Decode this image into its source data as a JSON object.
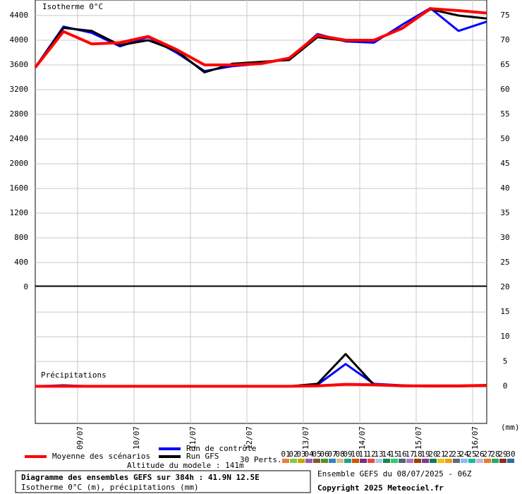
{
  "chart_data": [
    {
      "type": "line",
      "title": "Isotherme 0°C",
      "x": [
        0,
        12,
        24,
        36,
        48,
        60,
        72,
        84,
        96,
        108,
        120,
        132,
        144,
        156,
        168,
        180,
        192
      ],
      "xlim": [
        0,
        192
      ],
      "xticks": [
        18,
        42,
        66,
        90,
        114,
        138,
        162,
        186
      ],
      "ylim": [
        0,
        4651
      ],
      "yticks": [
        0,
        400,
        800,
        1200,
        1600,
        2000,
        2400,
        2800,
        3200,
        3600,
        4000,
        4400
      ],
      "y2lim": [
        20,
        78.14
      ],
      "y2ticks": [
        25,
        30,
        35,
        40,
        45,
        50,
        55,
        60,
        65,
        70,
        75
      ],
      "grid": true,
      "series": [
        {
          "name": "Run de contrôle",
          "color": "#0000ff",
          "values": [
            3560,
            4220,
            4120,
            3900,
            4050,
            3800,
            3500,
            3580,
            3620,
            3700,
            4100,
            3980,
            3960,
            4250,
            4520,
            4150,
            4300
          ]
        },
        {
          "name": "Run GFS",
          "color": "#000000",
          "values": [
            3560,
            4200,
            4150,
            3920,
            4000,
            3830,
            3480,
            3620,
            3650,
            3680,
            4050,
            3990,
            4000,
            4200,
            4500,
            4400,
            4350
          ]
        },
        {
          "name": "Moyenne des scénarios",
          "color": "#ff0000",
          "values": [
            3560,
            4140,
            3940,
            3960,
            4060,
            3850,
            3600,
            3600,
            3620,
            3710,
            4080,
            4000,
            4000,
            4190,
            4510,
            4480,
            4440
          ]
        }
      ]
    },
    {
      "type": "line",
      "title": "Précipitations",
      "y_label": "(mm)",
      "x": [
        0,
        12,
        24,
        36,
        48,
        60,
        72,
        84,
        96,
        108,
        120,
        132,
        144,
        156,
        168,
        180,
        192
      ],
      "xlim": [
        0,
        192
      ],
      "xticks": [
        {
          "value": 18,
          "label": "09/07"
        },
        {
          "value": 42,
          "label": "10/07"
        },
        {
          "value": 66,
          "label": "11/07"
        },
        {
          "value": 90,
          "label": "12/07"
        },
        {
          "value": 114,
          "label": "13/07"
        },
        {
          "value": 138,
          "label": "14/07"
        },
        {
          "value": 162,
          "label": "15/07"
        },
        {
          "value": 186,
          "label": "16/07"
        }
      ],
      "ylim": [
        -7.5,
        20
      ],
      "yticks": [
        0,
        5,
        10,
        15,
        20
      ],
      "grid": true,
      "series": [
        {
          "name": "Run de contrôle",
          "color": "#0000ff",
          "values": [
            0,
            0.2,
            0,
            0,
            0,
            0,
            0,
            0,
            0,
            0,
            0.3,
            4.5,
            0.5,
            0.2,
            0,
            0.1,
            0.2
          ]
        },
        {
          "name": "Run GFS",
          "color": "#000000",
          "values": [
            0,
            0.1,
            0,
            0,
            0,
            0,
            0,
            0,
            0,
            0,
            0.5,
            6.5,
            0.3,
            0.1,
            0,
            0,
            0.1
          ]
        },
        {
          "name": "Moyenne des scénarios",
          "color": "#ff0000",
          "values": [
            0,
            0,
            0,
            0,
            0,
            0,
            0,
            0,
            0,
            0,
            0.1,
            0.4,
            0.3,
            0.1,
            0.1,
            0.1,
            0.2
          ]
        }
      ]
    }
  ],
  "legend": {
    "perts_label": "30 Perts.",
    "perturbations": [
      {
        "name": "01",
        "color": "#e8803a"
      },
      {
        "name": "02",
        "color": "#8cc63f"
      },
      {
        "name": "03",
        "color": "#c8a800"
      },
      {
        "name": "04",
        "color": "#9b59b6"
      },
      {
        "name": "05",
        "color": "#7f5a2a"
      },
      {
        "name": "06",
        "color": "#5a8f29"
      },
      {
        "name": "07",
        "color": "#2e86c1"
      },
      {
        "name": "08",
        "color": "#d4c08a"
      },
      {
        "name": "09",
        "color": "#17a589"
      },
      {
        "name": "10",
        "color": "#d35400"
      },
      {
        "name": "11",
        "color": "#6c3483"
      },
      {
        "name": "12",
        "color": "#e74c3c"
      },
      {
        "name": "13",
        "color": "#a9cce3"
      },
      {
        "name": "14",
        "color": "#1e8449"
      },
      {
        "name": "15",
        "color": "#2ecc71"
      },
      {
        "name": "16",
        "color": "#566573"
      },
      {
        "name": "17",
        "color": "#af7ac5"
      },
      {
        "name": "18",
        "color": "#a04000"
      },
      {
        "name": "19",
        "color": "#7d3c98"
      },
      {
        "name": "20",
        "color": "#117a65"
      },
      {
        "name": "21",
        "color": "#f1c40f"
      },
      {
        "name": "22",
        "color": "#f39c12"
      },
      {
        "name": "23",
        "color": "#5d6d7e"
      },
      {
        "name": "24",
        "color": "#85c1e9"
      },
      {
        "name": "25",
        "color": "#1abc9c"
      },
      {
        "name": "26",
        "color": "#d2b4de"
      },
      {
        "name": "27",
        "color": "#e67e22"
      },
      {
        "name": "28",
        "color": "#27ae60"
      },
      {
        "name": "29",
        "color": "#922b21"
      },
      {
        "name": "30",
        "color": "#2471a3"
      }
    ]
  },
  "footer": {
    "altitude": "Altitude du modele : 141m",
    "title": "Diagramme des ensembles GEFS sur 384h : 41.9N 12.5E",
    "subtitle": "Isotherme 0°C (m), précipitations (mm)",
    "run": "Ensemble GEFS du 08/07/2025 - 06Z",
    "copyright": "Copyright 2025 Meteociel.fr"
  }
}
